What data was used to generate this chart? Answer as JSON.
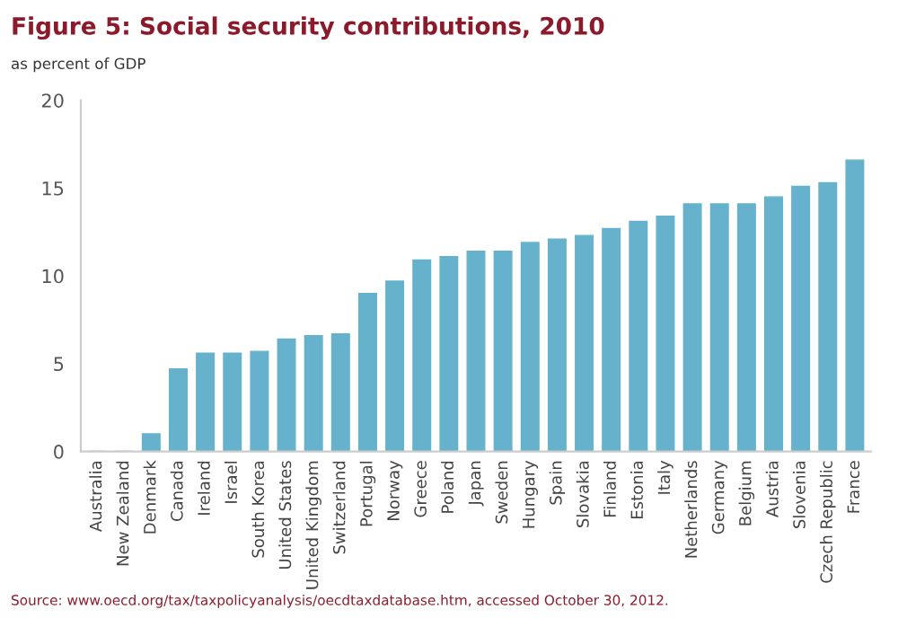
{
  "chart_data": {
    "type": "bar",
    "title": "Figure 5: Social security contributions, 2010",
    "subtitle": "as percent of GDP",
    "categories": [
      "Australia",
      "New Zealand",
      "Denmark",
      "Canada",
      "Ireland",
      "Israel",
      "South Korea",
      "United States",
      "United Kingdom",
      "Switzerland",
      "Portugal",
      "Norway",
      "Greece",
      "Poland",
      "Japan",
      "Sweden",
      "Hungary",
      "Spain",
      "Slovakia",
      "Finland",
      "Estonia",
      "Italy",
      "Netherlands",
      "Germany",
      "Belgium",
      "Austria",
      "Slovenia",
      "Czech Republic",
      "France"
    ],
    "values": [
      0,
      0,
      1.0,
      4.7,
      5.6,
      5.6,
      5.7,
      6.4,
      6.6,
      6.7,
      9.0,
      9.7,
      10.9,
      11.1,
      11.4,
      11.4,
      11.9,
      12.1,
      12.3,
      12.7,
      13.1,
      13.4,
      14.1,
      14.1,
      14.1,
      14.5,
      15.1,
      15.3,
      16.6
    ],
    "color": "#66b2cc",
    "ylim": [
      0,
      20
    ],
    "yticks": [
      0,
      5,
      10,
      15,
      20
    ],
    "grid": false,
    "annotations": [
      "Source: www.oecd.org/tax/taxpolicyanalysis/oecdtaxdatabase.htm, accessed October 30, 2012."
    ]
  }
}
